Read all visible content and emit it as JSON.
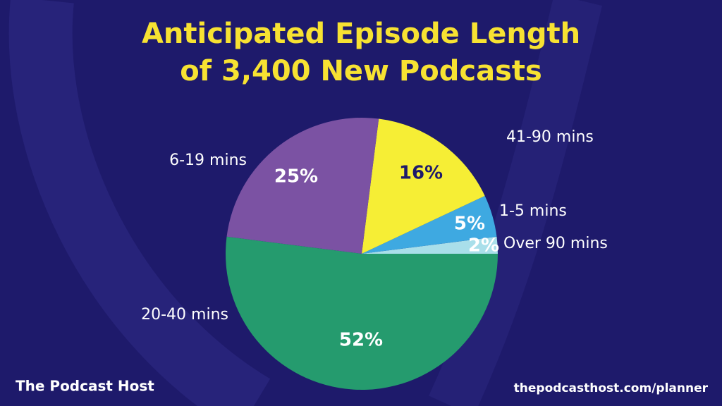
{
  "chart_data": {
    "type": "pie",
    "title": [
      "Anticipated Episode Length",
      "of 3,400 New Podcasts"
    ],
    "categories": [
      "Over 90 mins",
      "1-5 mins",
      "41-90 mins",
      "6-19 mins",
      "20-40 mins"
    ],
    "values": [
      2,
      5,
      16,
      25,
      52
    ],
    "value_labels": [
      "2%",
      "5%",
      "16%",
      "25%",
      "52%"
    ],
    "colors": [
      "#a9dfea",
      "#3ea9e1",
      "#f6ee35",
      "#7b52a3",
      "#259b6e"
    ]
  },
  "footer": {
    "brand": "The Podcast Host",
    "url": "thepodcasthost.com/planner"
  }
}
